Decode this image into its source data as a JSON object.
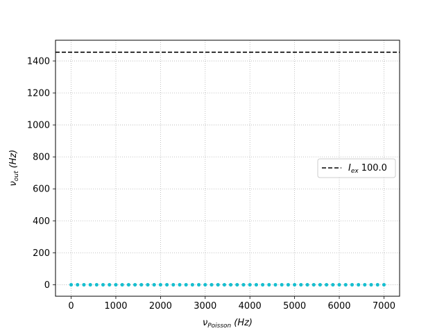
{
  "chart_data": {
    "type": "scatter",
    "xlabel": {
      "base": "ν",
      "sub": "Poisson",
      "unit": "(Hz)"
    },
    "ylabel": {
      "base": "ν",
      "sub": "out",
      "unit": "(Hz)"
    },
    "xlim": [
      -350,
      7350
    ],
    "ylim": [
      -72,
      1530
    ],
    "xticks": [
      0,
      1000,
      2000,
      3000,
      4000,
      5000,
      6000,
      7000
    ],
    "yticks": [
      0,
      200,
      400,
      600,
      800,
      1000,
      1200,
      1400
    ],
    "grid": true,
    "legend_position": "center-right",
    "reference_line": {
      "y": 1455,
      "style": "dashed",
      "color": "#000000",
      "legend": {
        "base": "I",
        "sub": "ex",
        "value": "100.0"
      }
    },
    "series": [
      {
        "color": "#17becf",
        "x": [
          0,
          143,
          286,
          429,
          571,
          714,
          857,
          1000,
          1143,
          1286,
          1429,
          1571,
          1714,
          1857,
          2000,
          2143,
          2286,
          2429,
          2571,
          2714,
          2857,
          3000,
          3143,
          3286,
          3429,
          3571,
          3714,
          3857,
          4000,
          4143,
          4286,
          4429,
          4571,
          4714,
          4857,
          5000,
          5143,
          5286,
          5429,
          5571,
          5714,
          5857,
          6000,
          6143,
          6286,
          6429,
          6571,
          6714,
          6857,
          7000
        ],
        "y": [
          0,
          0,
          0,
          0,
          0,
          0,
          0,
          0,
          0,
          0,
          0,
          0,
          0,
          0,
          0,
          0,
          0,
          0,
          0,
          0,
          0,
          0,
          0,
          0,
          0,
          0,
          0,
          0,
          0,
          0,
          0,
          0,
          0,
          0,
          0,
          0,
          0,
          0,
          0,
          0,
          0,
          0,
          0,
          0,
          0,
          0,
          0,
          0,
          0,
          0
        ]
      }
    ]
  }
}
